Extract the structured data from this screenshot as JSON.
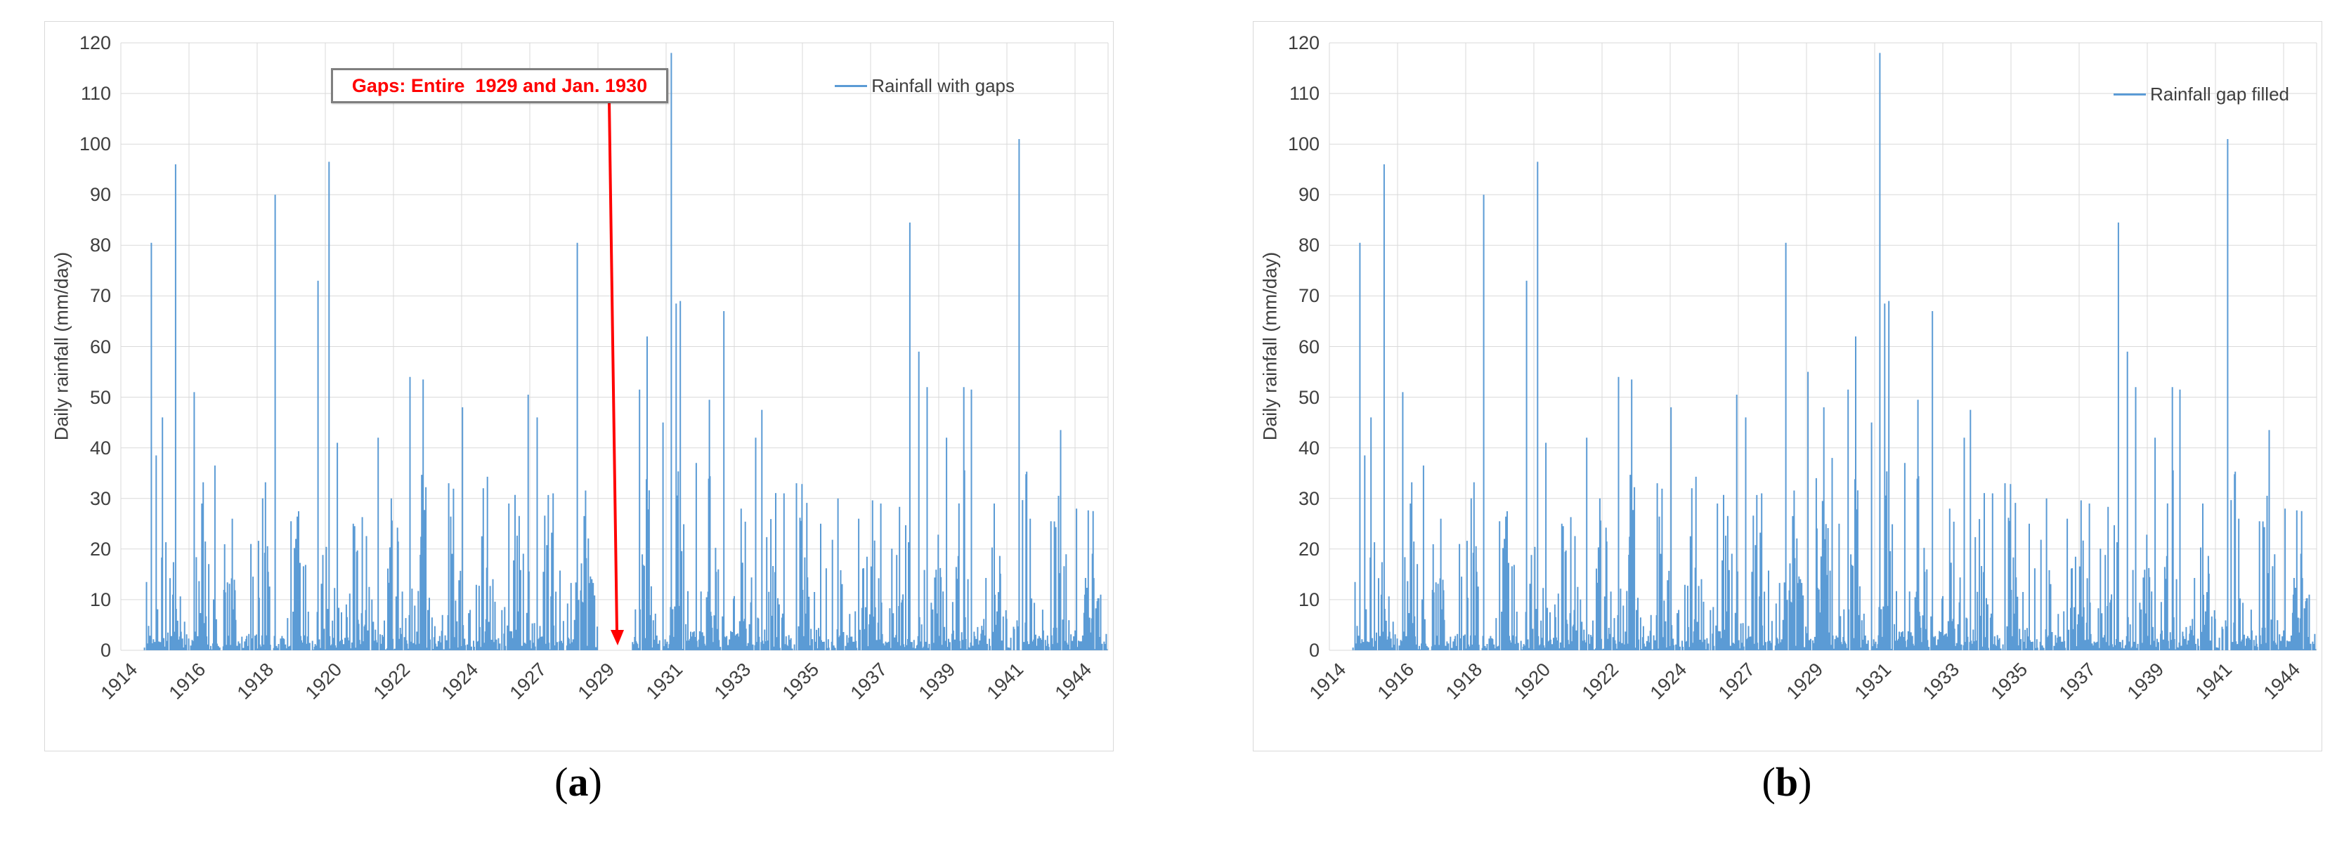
{
  "figure": {
    "captions": [
      {
        "open": "(",
        "letter": "a",
        "close": ")"
      },
      {
        "open": "(",
        "letter": "b",
        "close": ")"
      }
    ]
  },
  "colors": {
    "bar": "#5b9bd5",
    "grid": "#d9d9d9",
    "tick_text": "#3f3f3f",
    "legend_text": "#3f3f3f",
    "annotation_text": "#ff0000",
    "annotation_border": "#7f7f7f",
    "arrow": "#ff0000",
    "panel_border": "#d9d9d9"
  },
  "chart_data": [
    {
      "id": "a",
      "type": "bar",
      "legend": "Rainfall with gaps",
      "ylabel": "Daily rainfall (mm/day)",
      "ylim": [
        0,
        120
      ],
      "yticks": [
        0,
        10,
        20,
        30,
        40,
        50,
        60,
        70,
        80,
        90,
        100,
        110,
        120
      ],
      "xticks": [
        "1914",
        "1916",
        "1918",
        "1920",
        "1922",
        "1924",
        "1927",
        "1929",
        "1931",
        "1933",
        "1935",
        "1937",
        "1939",
        "1941",
        "1944"
      ],
      "x_year_range": [
        1914,
        1944
      ],
      "grid": true,
      "legend_position": "top-right",
      "annotation": {
        "text": "Gaps: Entire  1929 and Jan. 1930",
        "arrow_to_year": 1929.6
      },
      "gap": {
        "start_year": 1929.0,
        "end_year": 1930.08,
        "status": "missing"
      },
      "major_peaks": [
        [
          1914.95,
          80.5
        ],
        [
          1915.12,
          38.5
        ],
        [
          1915.3,
          46
        ],
        [
          1915.72,
          96
        ],
        [
          1916.3,
          51
        ],
        [
          1916.55,
          29
        ],
        [
          1916.95,
          36.5
        ],
        [
          1917.5,
          26
        ],
        [
          1918.1,
          21
        ],
        [
          1918.85,
          90
        ],
        [
          1919.5,
          22
        ],
        [
          1920.2,
          73
        ],
        [
          1920.55,
          96.5
        ],
        [
          1920.8,
          41
        ],
        [
          1921.3,
          25
        ],
        [
          1922.1,
          42
        ],
        [
          1922.5,
          30
        ],
        [
          1923.1,
          54
        ],
        [
          1923.5,
          53.5
        ],
        [
          1924.3,
          33
        ],
        [
          1924.75,
          48
        ],
        [
          1925.4,
          32
        ],
        [
          1926.2,
          29
        ],
        [
          1926.8,
          50.5
        ],
        [
          1927.1,
          46
        ],
        [
          1927.6,
          31
        ],
        [
          1928.35,
          80.5
        ],
        [
          1930.3,
          51.5
        ],
        [
          1930.55,
          62
        ],
        [
          1931.05,
          45
        ],
        [
          1931.3,
          118
        ],
        [
          1931.45,
          68.5
        ],
        [
          1931.6,
          69
        ],
        [
          1932.1,
          37
        ],
        [
          1932.5,
          49.5
        ],
        [
          1932.95,
          67
        ],
        [
          1933.5,
          28
        ],
        [
          1933.95,
          42
        ],
        [
          1934.15,
          47.5
        ],
        [
          1934.85,
          31
        ],
        [
          1935.25,
          33
        ],
        [
          1936.0,
          25
        ],
        [
          1936.55,
          30
        ],
        [
          1937.2,
          26
        ],
        [
          1937.9,
          29
        ],
        [
          1938.8,
          84.5
        ],
        [
          1939.1,
          59
        ],
        [
          1939.35,
          52
        ],
        [
          1939.95,
          42
        ],
        [
          1940.5,
          52
        ],
        [
          1940.75,
          51.5
        ],
        [
          1941.45,
          29
        ],
        [
          1942.25,
          101
        ],
        [
          1942.6,
          26
        ],
        [
          1943.25,
          25.5
        ],
        [
          1943.55,
          43.5
        ],
        [
          1944.05,
          28
        ],
        [
          1944.3,
          11
        ],
        [
          1944.8,
          11
        ]
      ],
      "series_spec": {
        "start_year": 1914.72,
        "end_year": 1945.0,
        "samples_per_year": 46,
        "seed": 20240601,
        "base_amplitude": 30
      }
    },
    {
      "id": "b",
      "type": "bar",
      "legend": "Rainfall gap filled",
      "ylabel": "Daily rainfall (mm/day)",
      "ylim": [
        0,
        120
      ],
      "yticks": [
        0,
        10,
        20,
        30,
        40,
        50,
        60,
        70,
        80,
        90,
        100,
        110,
        120
      ],
      "xticks": [
        "1914",
        "1916",
        "1918",
        "1920",
        "1922",
        "1924",
        "1927",
        "1929",
        "1931",
        "1933",
        "1935",
        "1937",
        "1939",
        "1941",
        "1944"
      ],
      "x_year_range": [
        1914,
        1944
      ],
      "grid": true,
      "legend_position": "top-right",
      "gap": {
        "start_year": 1929.0,
        "end_year": 1930.08,
        "status": "filled"
      },
      "major_peaks": [
        [
          1914.95,
          80.5
        ],
        [
          1915.12,
          38.5
        ],
        [
          1915.3,
          46
        ],
        [
          1915.72,
          96
        ],
        [
          1916.3,
          51
        ],
        [
          1916.55,
          29
        ],
        [
          1916.95,
          36.5
        ],
        [
          1917.5,
          26
        ],
        [
          1918.1,
          21
        ],
        [
          1918.85,
          90
        ],
        [
          1919.5,
          22
        ],
        [
          1920.2,
          73
        ],
        [
          1920.55,
          96.5
        ],
        [
          1920.8,
          41
        ],
        [
          1921.3,
          25
        ],
        [
          1922.1,
          42
        ],
        [
          1922.5,
          30
        ],
        [
          1923.1,
          54
        ],
        [
          1923.5,
          53.5
        ],
        [
          1924.3,
          33
        ],
        [
          1924.75,
          48
        ],
        [
          1925.4,
          32
        ],
        [
          1926.2,
          29
        ],
        [
          1926.8,
          50.5
        ],
        [
          1927.1,
          46
        ],
        [
          1927.6,
          31
        ],
        [
          1928.35,
          80.5
        ],
        [
          1930.3,
          51.5
        ],
        [
          1930.55,
          62
        ],
        [
          1931.05,
          45
        ],
        [
          1931.3,
          118
        ],
        [
          1931.45,
          68.5
        ],
        [
          1931.6,
          69
        ],
        [
          1932.1,
          37
        ],
        [
          1932.5,
          49.5
        ],
        [
          1932.95,
          67
        ],
        [
          1933.5,
          28
        ],
        [
          1933.95,
          42
        ],
        [
          1934.15,
          47.5
        ],
        [
          1934.85,
          31
        ],
        [
          1935.25,
          33
        ],
        [
          1936.0,
          25
        ],
        [
          1936.55,
          30
        ],
        [
          1937.2,
          26
        ],
        [
          1937.9,
          29
        ],
        [
          1938.8,
          84.5
        ],
        [
          1939.1,
          59
        ],
        [
          1939.35,
          52
        ],
        [
          1939.95,
          42
        ],
        [
          1940.5,
          52
        ],
        [
          1940.75,
          51.5
        ],
        [
          1941.45,
          29
        ],
        [
          1942.25,
          101
        ],
        [
          1942.6,
          26
        ],
        [
          1943.25,
          25.5
        ],
        [
          1943.55,
          43.5
        ],
        [
          1944.05,
          28
        ],
        [
          1944.3,
          11
        ],
        [
          1944.8,
          11
        ]
      ],
      "fill_peaks": [
        [
          1929.05,
          55
        ],
        [
          1929.3,
          34
        ],
        [
          1929.55,
          48
        ],
        [
          1929.8,
          38
        ],
        [
          1930.02,
          25
        ]
      ],
      "series_spec": {
        "start_year": 1914.72,
        "end_year": 1945.0,
        "samples_per_year": 46,
        "seed": 20240601,
        "base_amplitude": 30
      }
    }
  ]
}
